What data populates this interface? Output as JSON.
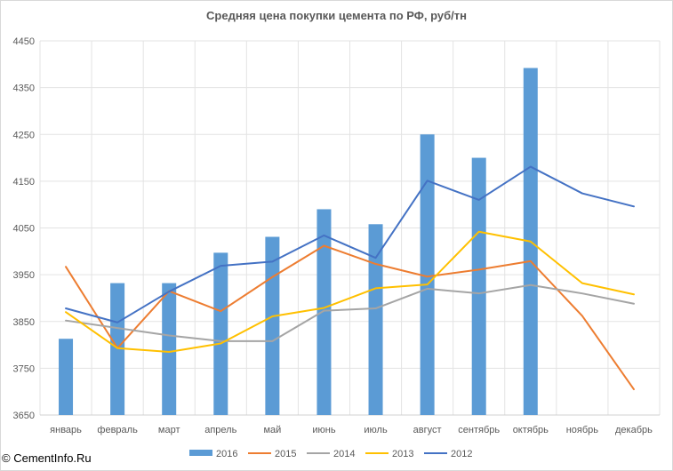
{
  "watermark": {
    "symbol": "©",
    "text": "CementInfo.Ru"
  },
  "chart_data": {
    "type": "bar",
    "title": "Средняя цена  покупки цемента по РФ, руб/тн",
    "xlabel": "",
    "ylabel": "",
    "ylim": [
      3650,
      4450
    ],
    "yticks": [
      3650,
      3750,
      3850,
      3950,
      4050,
      4150,
      4250,
      4350,
      4450
    ],
    "grid": true,
    "legend": "bottom",
    "categories": [
      "январь",
      "февраль",
      "март",
      "апрель",
      "май",
      "июнь",
      "июль",
      "август",
      "сентябрь",
      "октябрь",
      "ноябрь",
      "декабрь"
    ],
    "series": [
      {
        "name": "2016",
        "type": "bar",
        "color": "#5b9bd5",
        "values": [
          3813,
          3932,
          3932,
          3997,
          4031,
          4090,
          4058,
          4250,
          4200,
          4392,
          null,
          null
        ]
      },
      {
        "name": "2015",
        "type": "line",
        "color": "#ed7d31",
        "values": [
          3967,
          3793,
          3915,
          3872,
          3945,
          4012,
          3973,
          3946,
          3961,
          3979,
          3862,
          3705
        ]
      },
      {
        "name": "2014",
        "type": "line",
        "color": "#a5a5a5",
        "values": [
          3852,
          3836,
          3820,
          3808,
          3808,
          3873,
          3878,
          3920,
          3910,
          3928,
          3910,
          3888
        ]
      },
      {
        "name": "2013",
        "type": "line",
        "color": "#ffc000",
        "values": [
          3870,
          3793,
          3785,
          3803,
          3861,
          3879,
          3921,
          3929,
          4042,
          4021,
          3932,
          3908
        ]
      },
      {
        "name": "2012",
        "type": "line",
        "color": "#4472c4",
        "values": [
          3878,
          3848,
          3914,
          3969,
          3978,
          4034,
          3986,
          4151,
          4110,
          4181,
          4124,
          4096
        ]
      }
    ]
  }
}
